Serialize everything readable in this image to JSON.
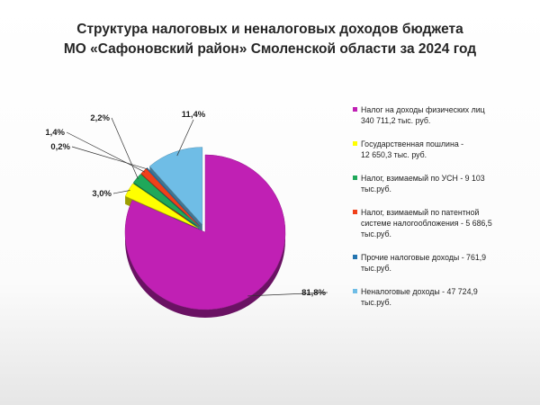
{
  "title": {
    "line1": "Структура налоговых и неналоговых доходов бюджета",
    "line2": "МО «Сафоновский район» Смоленской области за 2024 год"
  },
  "chart_data": {
    "type": "pie",
    "title": "Структура налоговых и неналоговых доходов бюджета МО «Сафоновский район» Смоленской области за 2024 год",
    "categories": [
      "Налог на доходы физических лиц 340 711,2 тыс. руб.",
      "Государственная пошлина - 12 650,3 тыс. руб.",
      "Налог, взимаемый по УСН - 9 103 тыс.руб.",
      "Налог, взимаемый по патентной системе налогообложения - 5 686,5 тыс.руб.",
      "Прочие налоговые доходы - 761,9 тыс.руб.",
      "Неналоговые доходы - 47 724,9 тыс.руб."
    ],
    "values": [
      81.8,
      3.0,
      2.2,
      1.4,
      0.2,
      11.4
    ],
    "amounts": [
      340711.2,
      12650.3,
      9103,
      5686.5,
      761.9,
      47724.9
    ],
    "data_labels": [
      "81,8%",
      "3,0%",
      "2,2%",
      "1,4%",
      "0,2%",
      "11,4%"
    ],
    "colors": [
      "#C020B4",
      "#FFFF00",
      "#1FA85A",
      "#F0401A",
      "#2475B0",
      "#6FBDE6"
    ],
    "legend_position": "right"
  },
  "legend": [
    {
      "text": "Налог на доходы физических  лиц\n340 711,2 тыс. руб.",
      "color": "#C020B4"
    },
    {
      "text": "Государственная  пошлина   -\n12 650,3 тыс. руб.",
      "color": "#FFFF00"
    },
    {
      "text": "Налог, взимаемый  по УСН - 9 103\nтыс.руб.",
      "color": "#1FA85A"
    },
    {
      "text": "Налог, взимаемый  по патентной\nсистеме налогообложения  - 5 686,5\nтыс.руб.",
      "color": "#F0401A"
    },
    {
      "text": "Прочие налоговые доходы - 761,9\nтыс.руб.",
      "color": "#2475B0"
    },
    {
      "text": "Неналоговые доходы - 47 724,9\nтыс.руб.",
      "color": "#6FBDE6"
    }
  ]
}
